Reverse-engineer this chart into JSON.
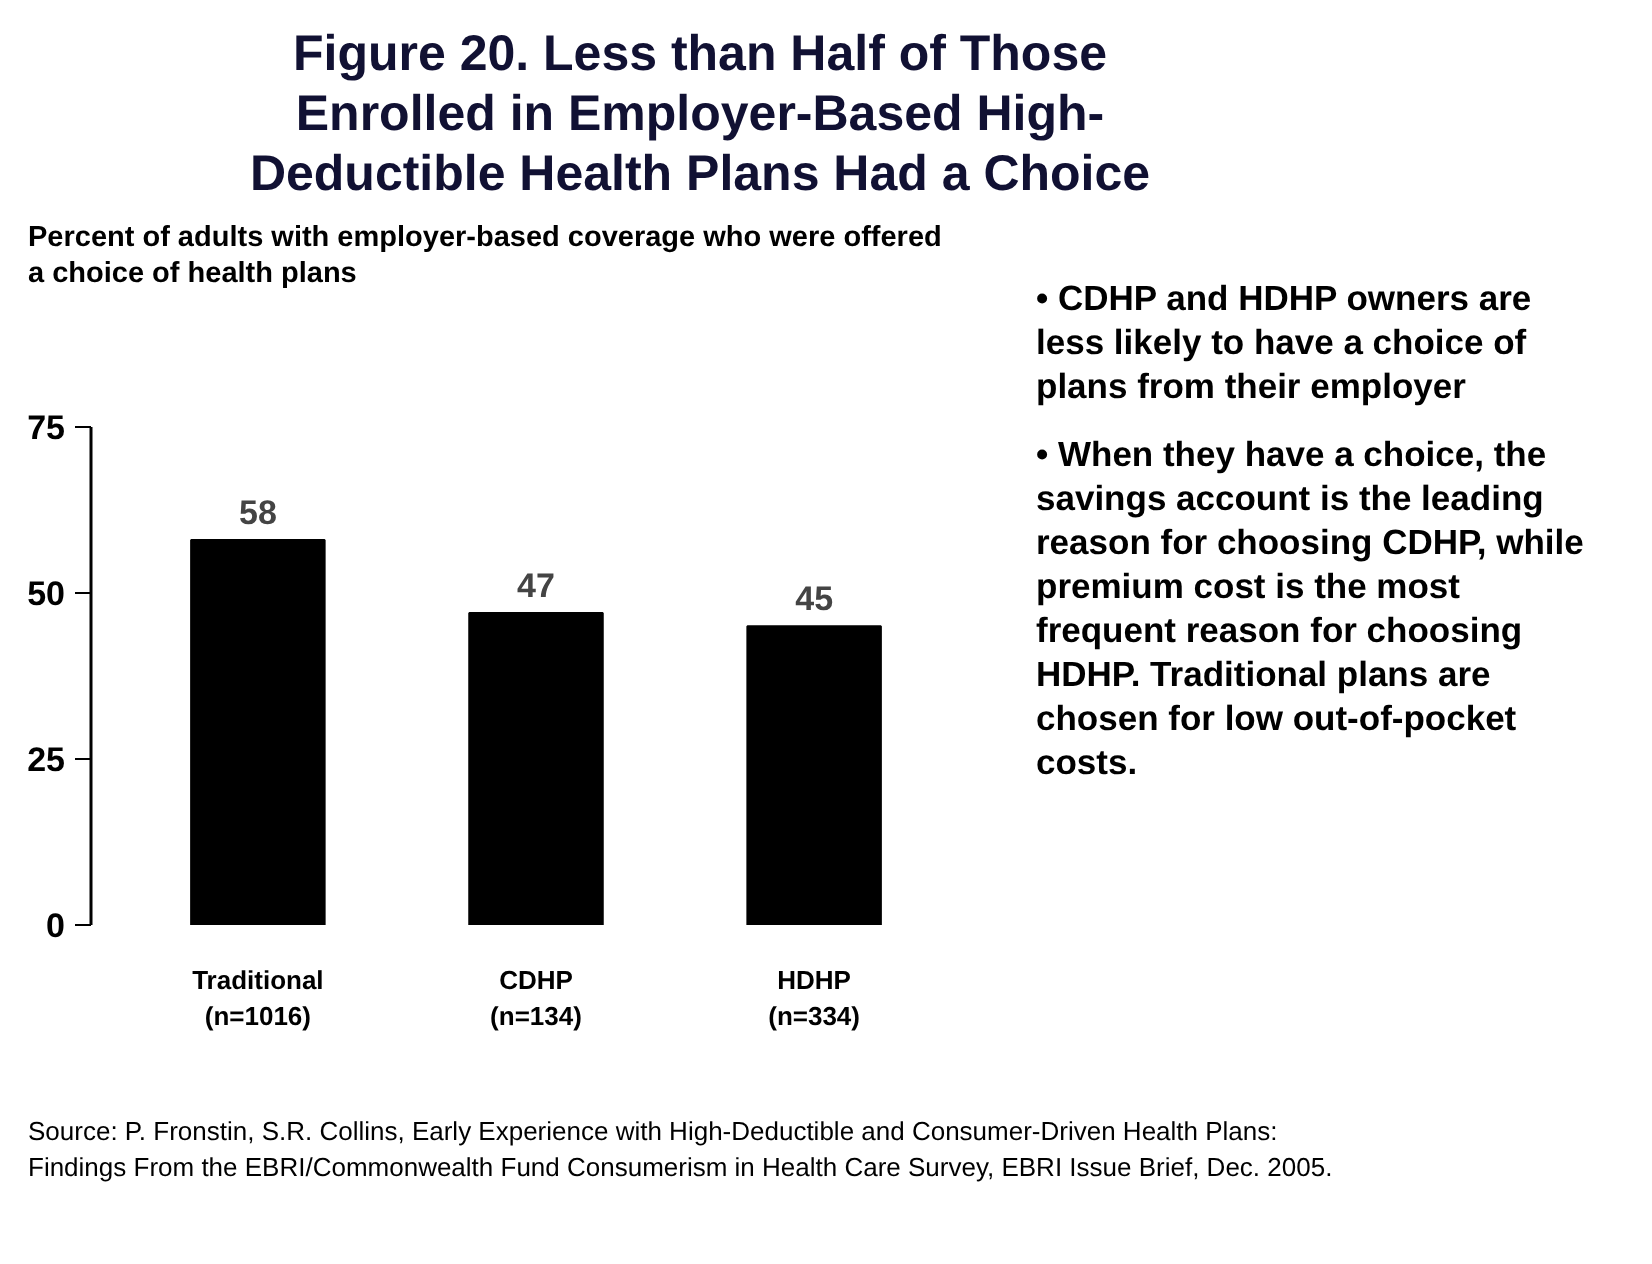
{
  "chart_data": {
    "type": "bar",
    "title": "Figure 20. Less than Half of Those Enrolled in Employer-Based High-Deductible Health Plans Had a Choice",
    "subtitle": "Percent of adults with employer-based coverage who were offered a choice of health plans",
    "categories": [
      "Traditional\n(n=1016)",
      "CDHP\n(n=134)",
      "HDHP\n(n=334)"
    ],
    "values": [
      58,
      47,
      45
    ],
    "color": "#000000",
    "ylim": [
      0,
      75
    ],
    "yticks": [
      0,
      25,
      50,
      75
    ],
    "grid": false,
    "data_labels": true,
    "annotations": [
      "• CDHP and HDHP owners are less likely to have a choice of plans from their employer",
      "• When they have a choice, the savings account is the leading reason for choosing CDHP, while premium cost is the most frequent reason for choosing HDHP. Traditional plans are chosen for low out-of-pocket costs.",
      "Source: P. Fronstin, S.R. Collins, Early Experience with High-Deductible and Consumer-Driven Health Plans: Findings From the EBRI/Commonwealth Fund Consumerism in Health Care Survey, EBRI Issue Brief, Dec. 2005."
    ]
  }
}
